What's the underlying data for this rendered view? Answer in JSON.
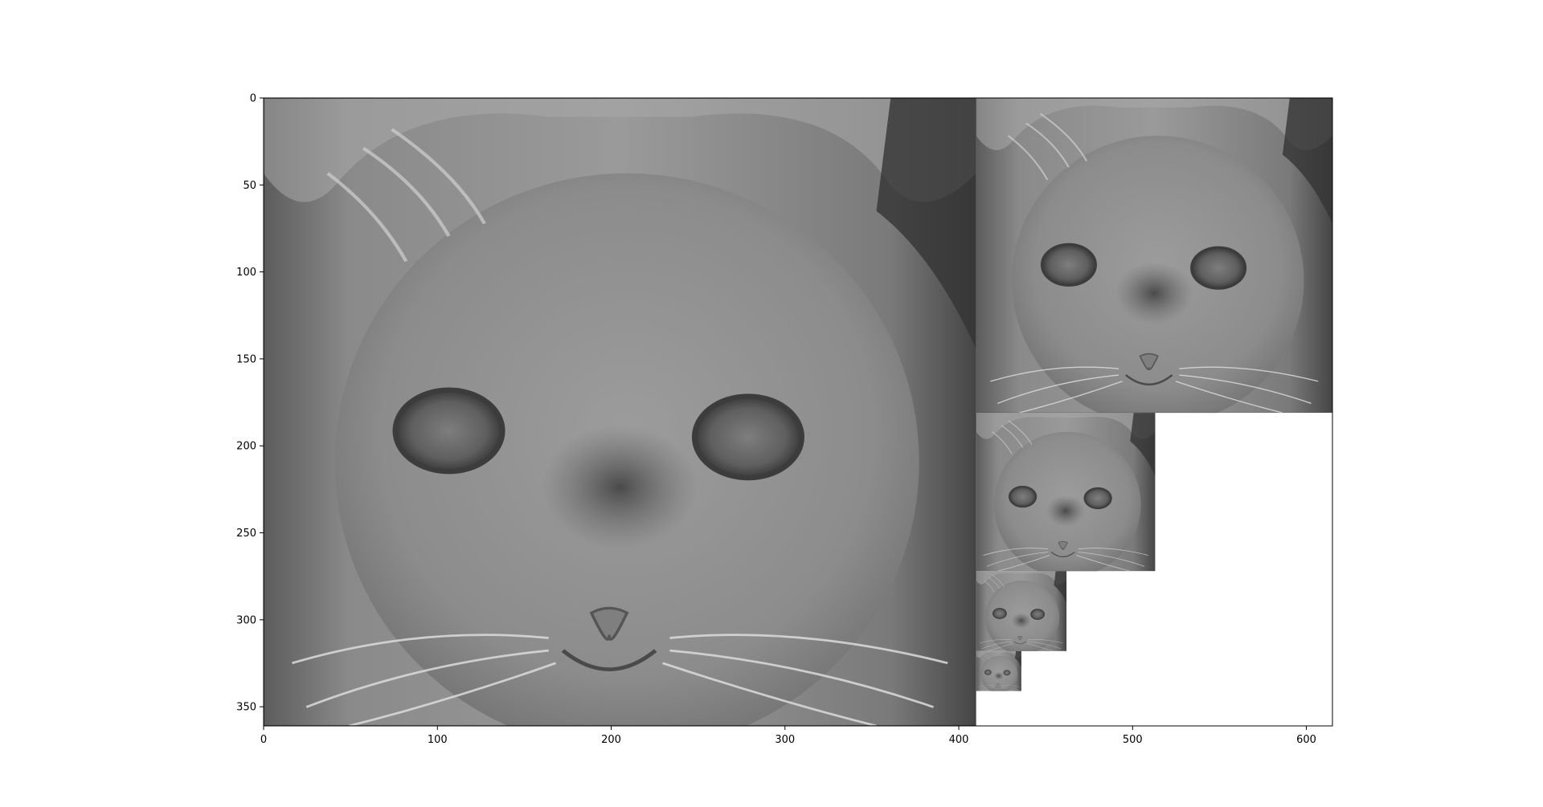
{
  "chart_data": {
    "type": "image",
    "title": "",
    "xlabel": "",
    "ylabel": "",
    "xlim": [
      0,
      615
    ],
    "ylim": [
      361,
      0
    ],
    "x_ticks": [
      0,
      100,
      200,
      300,
      400,
      500,
      600
    ],
    "y_ticks": [
      0,
      50,
      100,
      150,
      200,
      250,
      300,
      350
    ],
    "grid": false,
    "colormap": "gray",
    "image_pyramid": [
      {
        "level": 0,
        "x": [
          0,
          410
        ],
        "y": [
          0,
          361
        ]
      },
      {
        "level": 1,
        "x": [
          410,
          615
        ],
        "y": [
          0,
          181
        ]
      },
      {
        "level": 2,
        "x": [
          410,
          513
        ],
        "y": [
          181,
          272
        ]
      },
      {
        "level": 3,
        "x": [
          410,
          462
        ],
        "y": [
          272,
          318
        ]
      },
      {
        "level": 4,
        "x": [
          410,
          436
        ],
        "y": [
          318,
          341
        ]
      }
    ]
  }
}
